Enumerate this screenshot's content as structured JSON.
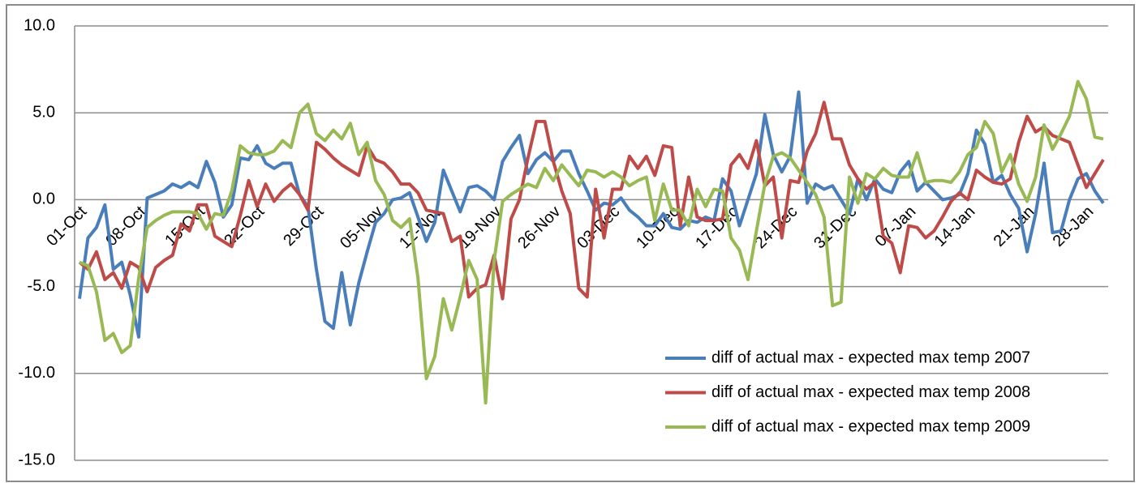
{
  "chart_data": {
    "type": "line",
    "categories": [
      "01-Oct",
      null,
      null,
      null,
      null,
      null,
      null,
      "08-Oct",
      null,
      null,
      null,
      null,
      null,
      null,
      "15-Oct",
      null,
      null,
      null,
      null,
      null,
      null,
      "22-Oct",
      null,
      null,
      null,
      null,
      null,
      null,
      "29-Oct",
      null,
      null,
      null,
      null,
      null,
      null,
      "05-Nov",
      null,
      null,
      null,
      null,
      null,
      null,
      "12-Nov",
      null,
      null,
      null,
      null,
      null,
      null,
      "19-Nov",
      null,
      null,
      null,
      null,
      null,
      null,
      "26-Nov",
      null,
      null,
      null,
      null,
      null,
      null,
      "03-Dec",
      null,
      null,
      null,
      null,
      null,
      null,
      "10-Dec",
      null,
      null,
      null,
      null,
      null,
      null,
      "17-Dec",
      null,
      null,
      null,
      null,
      null,
      null,
      "24-Dec",
      null,
      null,
      null,
      null,
      null,
      null,
      "31-Dec",
      null,
      null,
      null,
      null,
      null,
      null,
      "07-Jan",
      null,
      null,
      null,
      null,
      null,
      null,
      "14-Jan",
      null,
      null,
      null,
      null,
      null,
      null,
      "21-Jan",
      null,
      null,
      null,
      null,
      null,
      null,
      "28-Jan",
      null,
      null
    ],
    "series": [
      {
        "name": "diff of actual max - expected max temp 2007",
        "color": "#4a7ebb",
        "values": [
          -5.7,
          -2.2,
          -1.6,
          -0.3,
          -4.0,
          -3.6,
          -5.5,
          -7.9,
          0.1,
          0.3,
          0.5,
          0.9,
          0.7,
          1.0,
          0.7,
          2.2,
          1.0,
          -1.0,
          -0.3,
          2.4,
          2.3,
          3.1,
          2.1,
          1.8,
          2.1,
          2.1,
          0.3,
          -0.4,
          -4.0,
          -7.0,
          -7.4,
          -4.2,
          -7.2,
          -4.8,
          -3.0,
          -1.3,
          -0.8,
          0.0,
          0.1,
          0.4,
          -1.0,
          -2.4,
          -1.3,
          1.7,
          0.5,
          -0.7,
          0.7,
          0.8,
          0.5,
          0.0,
          2.2,
          3.0,
          3.7,
          1.5,
          2.3,
          2.7,
          2.2,
          2.8,
          2.8,
          1.5,
          0.5,
          -0.6,
          -0.2,
          -0.3,
          0.1,
          -0.6,
          -1.0,
          -1.5,
          -1.5,
          -0.8,
          -1.6,
          -1.7,
          -1.2,
          -1.3,
          -1.0,
          -1.2,
          1.2,
          0.5,
          -1.5,
          0.0,
          1.5,
          4.9,
          2.6,
          1.6,
          2.5,
          6.2,
          -0.2,
          0.9,
          0.6,
          0.8,
          0.0,
          -0.8,
          1.2,
          0.0,
          1.2,
          0.6,
          0.4,
          1.6,
          2.2,
          0.5,
          1.0,
          0.5,
          0.0,
          0.1,
          0.3,
          1.5,
          4.0,
          3.2,
          1.0,
          1.4,
          0.3,
          -0.5,
          -3.0,
          -0.8,
          2.1,
          -1.9,
          -1.8,
          0.0,
          1.2,
          1.5,
          0.5,
          -0.2
        ]
      },
      {
        "name": "diff of actual max - expected max temp 2008",
        "color": "#be4b48",
        "values": [
          -3.6,
          -4.0,
          -3.0,
          -4.6,
          -4.2,
          -5.1,
          -3.6,
          -3.9,
          -5.3,
          -3.9,
          -3.5,
          -3.2,
          -1.4,
          -1.8,
          -0.3,
          -0.3,
          -2.1,
          -2.4,
          -2.7,
          -0.9,
          1.1,
          -0.4,
          0.9,
          -0.1,
          0.5,
          0.9,
          0.3,
          -0.6,
          3.3,
          2.9,
          2.4,
          2.0,
          1.7,
          1.4,
          3.1,
          2.3,
          2.1,
          1.6,
          0.9,
          0.9,
          0.4,
          -0.6,
          -0.7,
          -0.8,
          -2.4,
          -2.1,
          -5.6,
          -5.1,
          -4.9,
          -3.2,
          -5.7,
          -1.1,
          0.0,
          2.4,
          4.5,
          4.5,
          2.2,
          0.5,
          -0.8,
          -5.1,
          -5.6,
          0.6,
          -2.2,
          0.6,
          0.6,
          2.5,
          1.8,
          2.5,
          1.4,
          3.1,
          3.0,
          -1.5,
          1.3,
          -1.0,
          -1.2,
          -1.2,
          -1.1,
          2.0,
          2.6,
          1.8,
          3.4,
          0.8,
          1.3,
          -2.2,
          1.1,
          1.0,
          2.8,
          3.8,
          5.6,
          3.5,
          3.5,
          2.0,
          1.2,
          0.6,
          1.0,
          -2.1,
          -2.5,
          -4.2,
          -1.5,
          -1.6,
          -2.2,
          -1.8,
          -1.0,
          -0.1,
          0.4,
          0.0,
          1.7,
          1.3,
          1.0,
          0.9,
          1.2,
          3.3,
          4.8,
          3.9,
          4.2,
          3.7,
          3.5,
          3.3,
          2.0,
          0.7,
          1.5,
          2.3
        ]
      },
      {
        "name": "diff of actual max - expected max temp 2009",
        "color": "#98b954",
        "values": [
          -3.6,
          -3.8,
          -5.3,
          -8.1,
          -7.7,
          -8.8,
          -8.4,
          -4.5,
          -1.6,
          -1.2,
          -0.9,
          -0.7,
          -0.7,
          -0.7,
          -0.8,
          -1.7,
          -0.8,
          -0.9,
          0.5,
          3.1,
          2.7,
          2.6,
          2.6,
          2.8,
          3.4,
          3.0,
          5.0,
          5.5,
          3.8,
          3.4,
          4.0,
          3.5,
          4.4,
          2.6,
          3.3,
          1.1,
          0.3,
          -1.2,
          -1.6,
          -1.1,
          -4.5,
          -10.3,
          -9.0,
          -5.7,
          -7.5,
          -5.6,
          -3.5,
          -4.6,
          -11.7,
          -3.5,
          -0.1,
          0.3,
          0.6,
          0.9,
          0.7,
          1.8,
          1.1,
          2.0,
          1.4,
          0.8,
          1.7,
          1.6,
          1.3,
          1.6,
          1.3,
          0.8,
          1.1,
          1.3,
          -1.2,
          0.9,
          -0.6,
          -0.6,
          -1.5,
          0.6,
          -0.4,
          0.6,
          0.5,
          -2.2,
          -2.9,
          -4.6,
          -1.8,
          0.9,
          2.5,
          2.7,
          2.4,
          1.7,
          1.0,
          0.3,
          -1.0,
          -6.1,
          -5.9,
          1.3,
          -0.2,
          1.5,
          1.2,
          1.8,
          1.4,
          1.3,
          1.3,
          2.7,
          1.0,
          1.1,
          1.1,
          1.0,
          1.6,
          2.6,
          3.0,
          4.5,
          3.8,
          1.6,
          2.6,
          0.9,
          -0.1,
          1.3,
          4.3,
          2.9,
          3.8,
          4.8,
          6.8,
          5.8,
          3.6,
          3.5
        ]
      }
    ],
    "ylim": [
      -15,
      10
    ],
    "yticks": [
      {
        "value": -15,
        "label": "-15.0"
      },
      {
        "value": -10,
        "label": "-10.0"
      },
      {
        "value": -5,
        "label": "-5.0"
      },
      {
        "value": 0,
        "label": "0.0"
      },
      {
        "value": 5,
        "label": "5.0"
      },
      {
        "value": 10,
        "label": "10.0"
      }
    ],
    "grid": true,
    "legend": "lower-right"
  }
}
